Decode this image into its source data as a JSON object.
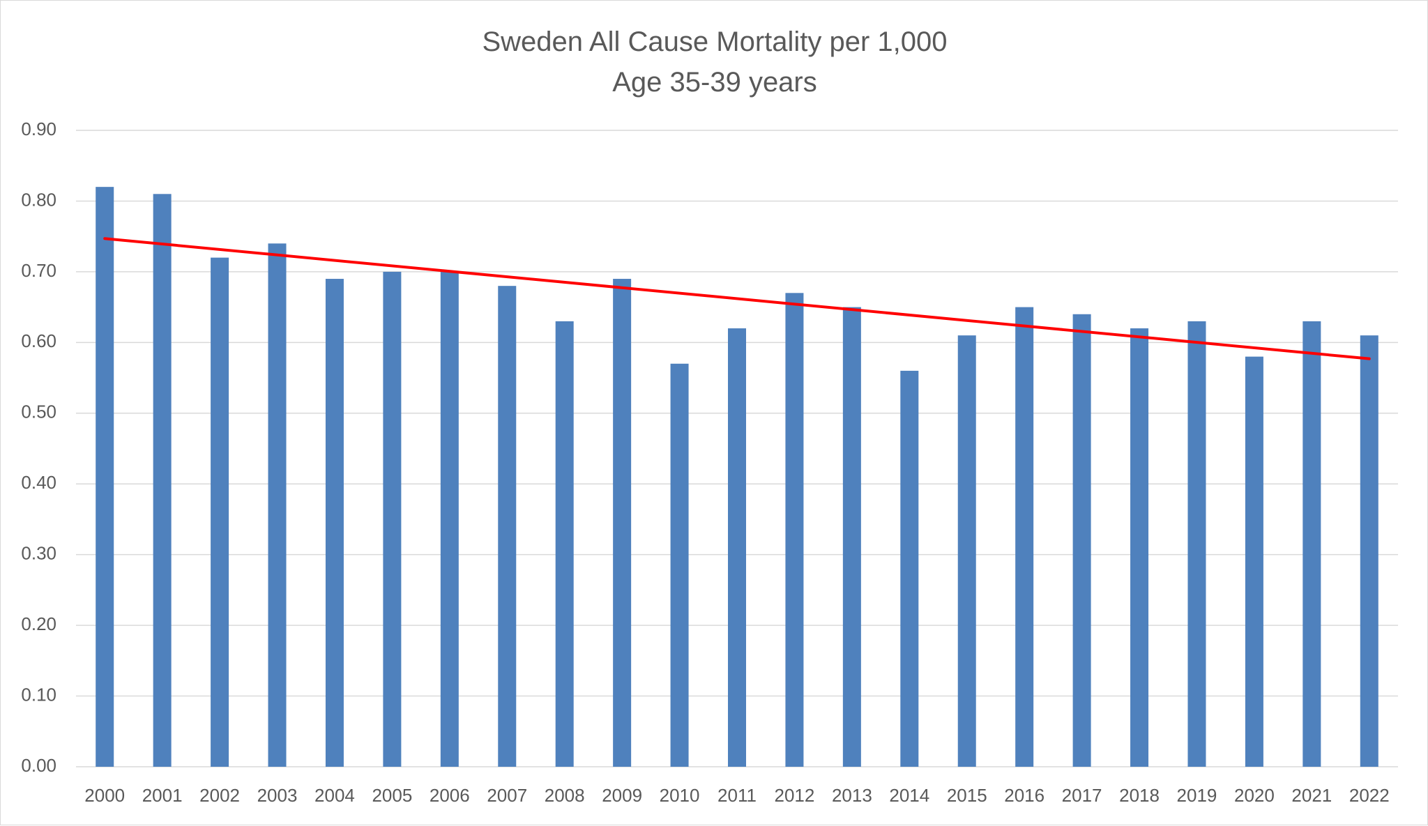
{
  "chart_data": {
    "type": "bar",
    "title": "Sweden All Cause Mortality per 1,000",
    "subtitle": "Age 35-39 years",
    "categories": [
      "2000",
      "2001",
      "2002",
      "2003",
      "2004",
      "2005",
      "2006",
      "2007",
      "2008",
      "2009",
      "2010",
      "2011",
      "2012",
      "2013",
      "2014",
      "2015",
      "2016",
      "2017",
      "2018",
      "2019",
      "2020",
      "2021",
      "2022"
    ],
    "values": [
      0.82,
      0.81,
      0.72,
      0.74,
      0.69,
      0.7,
      0.7,
      0.68,
      0.63,
      0.69,
      0.57,
      0.62,
      0.67,
      0.65,
      0.56,
      0.61,
      0.65,
      0.64,
      0.62,
      0.63,
      0.58,
      0.63,
      0.61
    ],
    "ylim": [
      0,
      0.9
    ],
    "yticks": [
      "0.00",
      "0.10",
      "0.20",
      "0.30",
      "0.40",
      "0.50",
      "0.60",
      "0.70",
      "0.80",
      "0.90"
    ],
    "grid": true,
    "legend": "none",
    "trendline": {
      "type": "linear",
      "start": 0.747,
      "end": 0.577
    },
    "colors": {
      "bar": "#4f81bd",
      "trendline": "#ff0000",
      "grid": "#d9d9d9",
      "text": "#595959"
    }
  }
}
